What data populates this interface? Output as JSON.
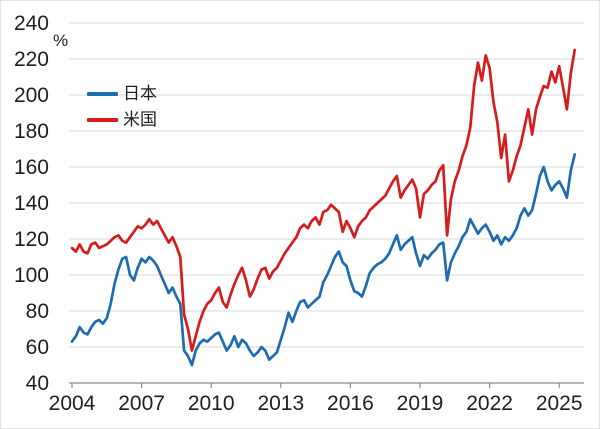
{
  "chart_data": {
    "type": "line",
    "title": "",
    "unit_label": "%",
    "grid": "horizontal",
    "legend_position": "top-left-inside",
    "x_start": 2004,
    "x_step_years": 0.1666667,
    "x_axis": {
      "ticks": [
        2004,
        2007,
        2010,
        2013,
        2016,
        2019,
        2022,
        2025
      ]
    },
    "y_axis": {
      "min": 40,
      "max": 240,
      "tick_step": 20
    },
    "colors": {
      "gridline": "#d9d9d9",
      "axis": "#8c8c8c",
      "text": "#1f1f1f",
      "background": "#ffffff"
    },
    "series": [
      {
        "name": "日本",
        "key": "japan",
        "color": "#1e6cb0",
        "values": [
          63,
          66,
          71,
          68,
          67,
          71,
          74,
          75,
          73,
          76,
          84,
          95,
          103,
          109,
          110,
          100,
          97,
          104,
          109,
          107,
          110,
          108,
          105,
          100,
          95,
          90,
          93,
          88,
          84,
          58,
          55,
          50,
          58,
          62,
          64,
          63,
          65,
          67,
          68,
          63,
          58,
          61,
          66,
          60,
          64,
          62,
          58,
          55,
          57,
          60,
          58,
          53,
          55,
          57,
          64,
          71,
          79,
          74,
          80,
          85,
          86,
          82,
          84,
          86,
          88,
          96,
          100,
          105,
          110,
          113,
          107,
          105,
          97,
          91,
          90,
          88,
          94,
          101,
          104,
          106,
          107,
          109,
          112,
          117,
          122,
          114,
          117,
          119,
          121,
          112,
          105,
          111,
          109,
          112,
          114,
          117,
          118,
          97,
          107,
          112,
          116,
          121,
          124,
          131,
          127,
          123,
          126,
          128,
          124,
          119,
          122,
          117,
          121,
          119,
          122,
          126,
          133,
          137,
          133,
          136,
          145,
          155,
          160,
          152,
          147,
          150,
          152,
          148,
          143,
          158,
          167
        ]
      },
      {
        "name": "米国",
        "key": "us",
        "color": "#d71c1c",
        "values": [
          115,
          113,
          117,
          113,
          112,
          117,
          118,
          115,
          116,
          117,
          119,
          121,
          122,
          119,
          118,
          121,
          124,
          127,
          126,
          128,
          131,
          128,
          130,
          126,
          122,
          118,
          121,
          116,
          110,
          78,
          70,
          58,
          66,
          74,
          80,
          84,
          86,
          90,
          93,
          85,
          82,
          89,
          95,
          100,
          104,
          97,
          88,
          92,
          98,
          103,
          104,
          98,
          102,
          104,
          108,
          112,
          115,
          118,
          121,
          126,
          128,
          126,
          130,
          132,
          128,
          135,
          136,
          139,
          137,
          135,
          124,
          130,
          126,
          121,
          127,
          130,
          132,
          136,
          138,
          140,
          142,
          144,
          148,
          152,
          155,
          143,
          147,
          150,
          153,
          148,
          132,
          145,
          147,
          150,
          152,
          158,
          161,
          122,
          142,
          152,
          158,
          166,
          172,
          182,
          205,
          218,
          208,
          222,
          215,
          196,
          185,
          165,
          178,
          152,
          158,
          166,
          172,
          182,
          192,
          178,
          192,
          199,
          205,
          204,
          213,
          207,
          216,
          204,
          192,
          212,
          225
        ]
      }
    ]
  }
}
